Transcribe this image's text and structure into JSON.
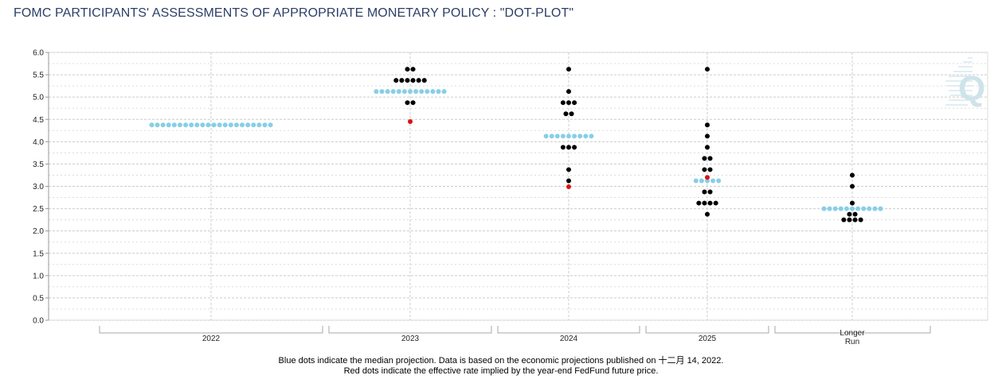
{
  "title": "FOMC PARTICIPANTS' ASSESSMENTS OF APPROPRIATE MONETARY POLICY : \"DOT-PLOT\"",
  "footnote": {
    "line1": "Blue dots indicate the median projection. Data is based on the economic projections published on 十二月 14, 2022.",
    "line2": "Red dots indicate the effective rate implied by the year-end FedFund future price."
  },
  "logo": {
    "text": "Q",
    "color": "#cfe3ea"
  },
  "colors": {
    "participant": "#000000",
    "median": "#87cfe6",
    "market": "#dd1111",
    "grid": "#cccccc",
    "axis": "#999999"
  },
  "chart_data": {
    "type": "scatter",
    "title": "FOMC PARTICIPANTS' ASSESSMENTS OF APPROPRIATE MONETARY POLICY : \"DOT-PLOT\"",
    "xlabel": "",
    "ylabel": "",
    "ylim": [
      0,
      6
    ],
    "y_ticks": [
      "0.0",
      "0.5",
      "1.0",
      "1.5",
      "2.0",
      "2.5",
      "3.0",
      "3.5",
      "4.0",
      "4.5",
      "5.0",
      "5.5",
      "6.0"
    ],
    "grid": true,
    "categories": [
      "2022",
      "2023",
      "2024",
      "2025",
      "Longer Run"
    ],
    "participants": [
      {
        "category": "2023",
        "rates": [
          {
            "y": 5.625,
            "count": 2
          },
          {
            "y": 5.375,
            "count": 6
          },
          {
            "y": 4.875,
            "count": 2
          }
        ]
      },
      {
        "category": "2024",
        "rates": [
          {
            "y": 5.625,
            "count": 1
          },
          {
            "y": 5.125,
            "count": 1
          },
          {
            "y": 4.875,
            "count": 3
          },
          {
            "y": 4.625,
            "count": 2
          },
          {
            "y": 3.875,
            "count": 3
          },
          {
            "y": 3.375,
            "count": 1
          },
          {
            "y": 3.125,
            "count": 1
          }
        ]
      },
      {
        "category": "2025",
        "rates": [
          {
            "y": 5.625,
            "count": 1
          },
          {
            "y": 4.375,
            "count": 1
          },
          {
            "y": 4.125,
            "count": 1
          },
          {
            "y": 3.875,
            "count": 1
          },
          {
            "y": 3.625,
            "count": 2
          },
          {
            "y": 3.375,
            "count": 2
          },
          {
            "y": 2.875,
            "count": 2
          },
          {
            "y": 2.625,
            "count": 4
          },
          {
            "y": 2.375,
            "count": 1
          }
        ]
      },
      {
        "category": "Longer Run",
        "rates": [
          {
            "y": 3.25,
            "count": 1
          },
          {
            "y": 3.0,
            "count": 1
          },
          {
            "y": 2.625,
            "count": 1
          },
          {
            "y": 2.375,
            "count": 2
          },
          {
            "y": 2.25,
            "count": 4
          }
        ]
      }
    ],
    "median": [
      {
        "category": "2022",
        "y": 4.375
      },
      {
        "category": "2023",
        "y": 5.125
      },
      {
        "category": "2024",
        "y": 4.125
      },
      {
        "category": "2025",
        "y": 3.125
      },
      {
        "category": "Longer Run",
        "y": 2.5
      }
    ],
    "market_implied": [
      {
        "category": "2023",
        "y": 4.45
      },
      {
        "category": "2024",
        "y": 2.99
      },
      {
        "category": "2025",
        "y": 3.2
      }
    ]
  }
}
